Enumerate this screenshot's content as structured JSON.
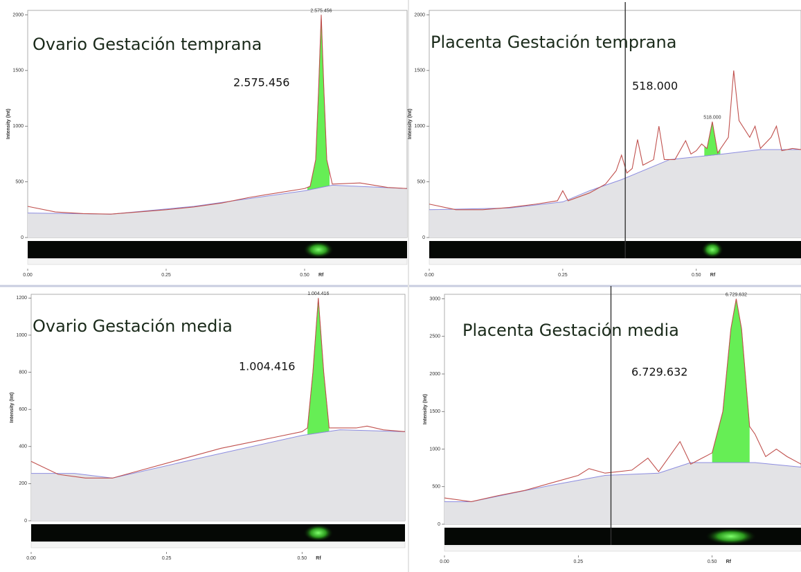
{
  "chart_data": [
    {
      "type": "line",
      "title": "Ovario Gestación temprana",
      "annotation": "2.575.456",
      "peak_label": "2.575.456",
      "ylabel": "Intensity (Int)",
      "xlabel": "Rf",
      "xlim": [
        0,
        0.685
      ],
      "ylim": [
        0,
        2040
      ],
      "xticks": [
        {
          "value": 0,
          "label": "0.00"
        },
        {
          "value": 0.25,
          "label": "0.25"
        },
        {
          "value": 0.5,
          "label": "0.50"
        }
      ],
      "yticks": [
        0,
        500,
        1000,
        1500,
        2000
      ],
      "peak_range": [
        0.505,
        0.545
      ],
      "peak_color": "#66ee55",
      "series": [
        {
          "color": "#c0504d",
          "x": [
            0,
            0.05,
            0.1,
            0.15,
            0.2,
            0.25,
            0.3,
            0.35,
            0.4,
            0.45,
            0.5,
            0.51,
            0.52,
            0.525,
            0.53,
            0.535,
            0.54,
            0.55,
            0.6,
            0.65,
            0.685
          ],
          "values": [
            280,
            230,
            215,
            210,
            230,
            250,
            275,
            310,
            360,
            400,
            440,
            460,
            700,
            1300,
            2000,
            1300,
            700,
            480,
            490,
            450,
            440
          ]
        },
        {
          "color": "#8c8ce0",
          "fill": "#e3e3e6",
          "x": [
            0,
            0.15,
            0.3,
            0.5,
            0.55,
            0.685
          ],
          "values": [
            220,
            210,
            280,
            420,
            470,
            440
          ]
        }
      ]
    },
    {
      "type": "line",
      "title": "Placenta Gestación temprana",
      "annotation": "518.000",
      "peak_label": "518.000",
      "ylabel": "Intensity (Int)",
      "xlabel": "Rf",
      "xlim": [
        0,
        0.696
      ],
      "ylim": [
        0,
        2040
      ],
      "xticks": [
        {
          "value": 0,
          "label": "0.00"
        },
        {
          "value": 0.25,
          "label": "0.25"
        },
        {
          "value": 0.5,
          "label": "0.50"
        }
      ],
      "yticks": [
        0,
        500,
        1000,
        1500,
        2000
      ],
      "marker_x": 0.367,
      "peak_range": [
        0.515,
        0.545
      ],
      "peak_color": "#66ee55",
      "series": [
        {
          "color": "#c0504d",
          "x": [
            0,
            0.05,
            0.1,
            0.15,
            0.2,
            0.24,
            0.25,
            0.26,
            0.3,
            0.33,
            0.35,
            0.36,
            0.37,
            0.38,
            0.39,
            0.4,
            0.42,
            0.43,
            0.44,
            0.46,
            0.48,
            0.49,
            0.5,
            0.51,
            0.52,
            0.53,
            0.54,
            0.56,
            0.57,
            0.58,
            0.6,
            0.61,
            0.62,
            0.64,
            0.65,
            0.66,
            0.68,
            0.696
          ],
          "values": [
            300,
            250,
            250,
            270,
            300,
            330,
            420,
            330,
            400,
            480,
            600,
            740,
            580,
            620,
            880,
            650,
            700,
            1000,
            700,
            700,
            870,
            750,
            780,
            840,
            800,
            1040,
            760,
            900,
            1500,
            1050,
            900,
            1000,
            800,
            900,
            1000,
            780,
            800,
            790
          ]
        },
        {
          "color": "#8c8ce0",
          "fill": "#e3e3e6",
          "x": [
            0,
            0.15,
            0.25,
            0.3,
            0.36,
            0.45,
            0.55,
            0.62,
            0.696
          ],
          "values": [
            250,
            265,
            320,
            420,
            520,
            700,
            750,
            790,
            790
          ]
        }
      ]
    },
    {
      "type": "line",
      "title": "Ovario Gestación media",
      "annotation": "1.004.416",
      "peak_label": "1.004.416",
      "ylabel": "Intensity (Int)",
      "xlabel": "Rf",
      "xlim": [
        0,
        0.69
      ],
      "ylim": [
        0,
        1220
      ],
      "xticks": [
        {
          "value": 0,
          "label": "0.00"
        },
        {
          "value": 0.25,
          "label": "0.25"
        },
        {
          "value": 0.5,
          "label": "0.50"
        }
      ],
      "yticks": [
        0,
        200,
        400,
        600,
        800,
        1000,
        1200
      ],
      "peak_range": [
        0.51,
        0.55
      ],
      "peak_color": "#66ee55",
      "series": [
        {
          "color": "#c0504d",
          "x": [
            0,
            0.05,
            0.1,
            0.15,
            0.2,
            0.25,
            0.3,
            0.35,
            0.4,
            0.45,
            0.5,
            0.51,
            0.52,
            0.53,
            0.54,
            0.55,
            0.6,
            0.62,
            0.65,
            0.69
          ],
          "values": [
            320,
            250,
            230,
            230,
            270,
            310,
            350,
            390,
            420,
            450,
            480,
            500,
            800,
            1200,
            800,
            500,
            500,
            510,
            490,
            480
          ]
        },
        {
          "color": "#8c8ce0",
          "fill": "#e3e3e6",
          "x": [
            0,
            0.08,
            0.15,
            0.3,
            0.5,
            0.57,
            0.69
          ],
          "values": [
            255,
            255,
            230,
            330,
            460,
            490,
            480
          ]
        }
      ]
    },
    {
      "type": "line",
      "title": "Placenta Gestación media",
      "annotation": "6.729.632",
      "peak_label": "6.729.632",
      "ylabel": "Intensity (Int)",
      "xlabel": "Rf",
      "xlim": [
        0,
        0.666
      ],
      "ylim": [
        0,
        3060
      ],
      "xticks": [
        {
          "value": 0,
          "label": "0.00"
        },
        {
          "value": 0.25,
          "label": "0.25"
        },
        {
          "value": 0.5,
          "label": "0.50"
        }
      ],
      "yticks": [
        0,
        500,
        1000,
        1500,
        2000,
        2500,
        3000
      ],
      "marker_x": 0.311,
      "peak_range": [
        0.5,
        0.57
      ],
      "peak_color": "#66ee55",
      "series": [
        {
          "color": "#c0504d",
          "x": [
            0,
            0.05,
            0.1,
            0.15,
            0.2,
            0.25,
            0.27,
            0.3,
            0.35,
            0.38,
            0.4,
            0.44,
            0.46,
            0.5,
            0.52,
            0.535,
            0.545,
            0.555,
            0.57,
            0.58,
            0.6,
            0.62,
            0.64,
            0.666
          ],
          "values": [
            350,
            300,
            380,
            450,
            550,
            650,
            740,
            680,
            720,
            880,
            700,
            1100,
            800,
            950,
            1500,
            2600,
            3000,
            2600,
            1300,
            1200,
            900,
            1000,
            900,
            800
          ]
        },
        {
          "color": "#8c8ce0",
          "fill": "#e3e3e6",
          "x": [
            0,
            0.05,
            0.2,
            0.3,
            0.4,
            0.46,
            0.58,
            0.666
          ],
          "values": [
            300,
            300,
            520,
            650,
            680,
            820,
            820,
            760
          ]
        }
      ]
    }
  ]
}
